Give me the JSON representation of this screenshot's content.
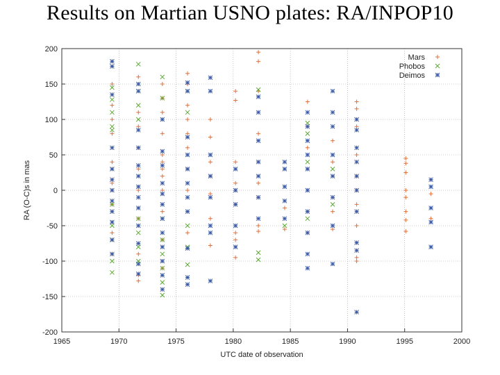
{
  "title": "Results on Martian USNO plates: RA/INPOP10",
  "chart_data": {
    "type": "scatter",
    "xlabel": "UTC date of observation",
    "ylabel": "RA (O-C)s in mas",
    "xlim": [
      1965,
      2000
    ],
    "ylim": [
      -200,
      200
    ],
    "xticks": [
      1965,
      1970,
      1975,
      1980,
      1985,
      1990,
      1995,
      2000
    ],
    "yticks": [
      -200,
      -150,
      -100,
      -50,
      0,
      50,
      100,
      150,
      200
    ],
    "grid": true,
    "legend_position": "top-right",
    "series": [
      {
        "name": "Mars",
        "marker": "+",
        "color": "#e0703a",
        "points": [
          [
            1969.4,
            150
          ],
          [
            1969.4,
            120
          ],
          [
            1969.4,
            100
          ],
          [
            1969.4,
            80
          ],
          [
            1969.4,
            40
          ],
          [
            1969.4,
            10
          ],
          [
            1969.4,
            -20
          ],
          [
            1969.4,
            -60
          ],
          [
            1969.4,
            -90
          ],
          [
            1971.7,
            160
          ],
          [
            1971.7,
            110
          ],
          [
            1971.7,
            90
          ],
          [
            1971.7,
            60
          ],
          [
            1971.7,
            30
          ],
          [
            1971.7,
            0
          ],
          [
            1971.7,
            -40
          ],
          [
            1971.7,
            -90
          ],
          [
            1971.7,
            -120
          ],
          [
            1971.7,
            -128
          ],
          [
            1973.8,
            150
          ],
          [
            1973.8,
            130
          ],
          [
            1973.8,
            110
          ],
          [
            1973.8,
            80
          ],
          [
            1973.8,
            50
          ],
          [
            1973.8,
            40
          ],
          [
            1973.8,
            30
          ],
          [
            1973.8,
            20
          ],
          [
            1973.8,
            0
          ],
          [
            1973.8,
            -30
          ],
          [
            1973.8,
            -70
          ],
          [
            1973.8,
            -110
          ],
          [
            1976.0,
            165
          ],
          [
            1976.0,
            150
          ],
          [
            1976.0,
            120
          ],
          [
            1976.0,
            100
          ],
          [
            1976.0,
            80
          ],
          [
            1976.0,
            60
          ],
          [
            1976.0,
            30
          ],
          [
            1976.0,
            0
          ],
          [
            1976.0,
            -30
          ],
          [
            1976.0,
            -60
          ],
          [
            1978.0,
            100
          ],
          [
            1978.0,
            75
          ],
          [
            1978.0,
            40
          ],
          [
            1978.0,
            20
          ],
          [
            1978.0,
            -5
          ],
          [
            1978.0,
            -40
          ],
          [
            1978.0,
            -78
          ],
          [
            1980.2,
            140
          ],
          [
            1980.2,
            127
          ],
          [
            1980.2,
            40
          ],
          [
            1980.2,
            10
          ],
          [
            1980.2,
            0
          ],
          [
            1980.2,
            -20
          ],
          [
            1980.2,
            -60
          ],
          [
            1980.2,
            -70
          ],
          [
            1980.2,
            -95
          ],
          [
            1982.2,
            195
          ],
          [
            1982.2,
            182
          ],
          [
            1982.2,
            140
          ],
          [
            1982.2,
            80
          ],
          [
            1982.2,
            40
          ],
          [
            1982.2,
            10
          ],
          [
            1982.2,
            -10
          ],
          [
            1982.2,
            -50
          ],
          [
            1982.2,
            -58
          ],
          [
            1984.5,
            -25
          ],
          [
            1984.5,
            -55
          ],
          [
            1986.5,
            125
          ],
          [
            1986.5,
            90
          ],
          [
            1986.5,
            60
          ],
          [
            1986.5,
            30
          ],
          [
            1986.5,
            0
          ],
          [
            1986.5,
            -30
          ],
          [
            1986.5,
            -60
          ],
          [
            1988.7,
            70
          ],
          [
            1988.7,
            40
          ],
          [
            1988.7,
            20
          ],
          [
            1988.7,
            -10
          ],
          [
            1988.7,
            -30
          ],
          [
            1988.7,
            -55
          ],
          [
            1990.8,
            125
          ],
          [
            1990.8,
            115
          ],
          [
            1990.8,
            90
          ],
          [
            1990.8,
            50
          ],
          [
            1990.8,
            20
          ],
          [
            1990.8,
            0
          ],
          [
            1990.8,
            -20
          ],
          [
            1990.8,
            -50
          ],
          [
            1990.8,
            -95
          ],
          [
            1990.8,
            -100
          ],
          [
            1995.1,
            45
          ],
          [
            1995.1,
            38
          ],
          [
            1995.1,
            25
          ],
          [
            1995.1,
            0
          ],
          [
            1995.1,
            -10
          ],
          [
            1995.1,
            -30
          ],
          [
            1995.1,
            -42
          ],
          [
            1995.1,
            -58
          ],
          [
            1997.3,
            15
          ],
          [
            1997.3,
            -5
          ],
          [
            1997.3,
            -40
          ]
        ]
      },
      {
        "name": "Phobos",
        "marker": "x",
        "color": "#5aa832",
        "points": [
          [
            1969.4,
            145
          ],
          [
            1969.4,
            128
          ],
          [
            1969.4,
            110
          ],
          [
            1969.4,
            90
          ],
          [
            1969.4,
            85
          ],
          [
            1969.4,
            -20
          ],
          [
            1969.4,
            -50
          ],
          [
            1969.4,
            -70
          ],
          [
            1969.4,
            -100
          ],
          [
            1969.4,
            -116
          ],
          [
            1971.7,
            178
          ],
          [
            1971.7,
            140
          ],
          [
            1971.7,
            120
          ],
          [
            1971.7,
            100
          ],
          [
            1971.7,
            -40
          ],
          [
            1971.7,
            -60
          ],
          [
            1971.7,
            -80
          ],
          [
            1971.7,
            -100
          ],
          [
            1973.8,
            160
          ],
          [
            1973.8,
            130
          ],
          [
            1973.8,
            -40
          ],
          [
            1973.8,
            -70
          ],
          [
            1973.8,
            -90
          ],
          [
            1973.8,
            -110
          ],
          [
            1973.8,
            -130
          ],
          [
            1973.8,
            -148
          ],
          [
            1976.0,
            140
          ],
          [
            1976.0,
            110
          ],
          [
            1976.0,
            -50
          ],
          [
            1976.0,
            -80
          ],
          [
            1976.0,
            -105
          ],
          [
            1982.2,
            142
          ],
          [
            1982.2,
            -88
          ],
          [
            1982.2,
            -98
          ],
          [
            1984.5,
            -50
          ],
          [
            1986.5,
            95
          ],
          [
            1986.5,
            80
          ],
          [
            1986.5,
            40
          ],
          [
            1986.5,
            -40
          ],
          [
            1988.7,
            30
          ],
          [
            1988.7,
            -20
          ]
        ]
      },
      {
        "name": "Deimos",
        "marker": "asterisk",
        "color": "#3a5aa8",
        "points": [
          [
            1969.4,
            182
          ],
          [
            1969.4,
            175
          ],
          [
            1969.4,
            135
          ],
          [
            1969.4,
            60
          ],
          [
            1969.4,
            30
          ],
          [
            1969.4,
            15
          ],
          [
            1969.4,
            0
          ],
          [
            1969.4,
            -15
          ],
          [
            1969.4,
            -30
          ],
          [
            1969.4,
            -45
          ],
          [
            1969.4,
            -70
          ],
          [
            1969.4,
            -90
          ],
          [
            1971.7,
            150
          ],
          [
            1971.7,
            140
          ],
          [
            1971.7,
            85
          ],
          [
            1971.7,
            60
          ],
          [
            1971.7,
            35
          ],
          [
            1971.7,
            20
          ],
          [
            1971.7,
            5
          ],
          [
            1971.7,
            -10
          ],
          [
            1971.7,
            -25
          ],
          [
            1971.7,
            -50
          ],
          [
            1971.7,
            -75
          ],
          [
            1971.7,
            -104
          ],
          [
            1971.7,
            -118
          ],
          [
            1973.8,
            100
          ],
          [
            1973.8,
            55
          ],
          [
            1973.8,
            35
          ],
          [
            1973.8,
            10
          ],
          [
            1973.8,
            -5
          ],
          [
            1973.8,
            -20
          ],
          [
            1973.8,
            -40
          ],
          [
            1973.8,
            -60
          ],
          [
            1973.8,
            -80
          ],
          [
            1973.8,
            -100
          ],
          [
            1973.8,
            -120
          ],
          [
            1973.8,
            -140
          ],
          [
            1976.0,
            152
          ],
          [
            1976.0,
            140
          ],
          [
            1976.0,
            75
          ],
          [
            1976.0,
            50
          ],
          [
            1976.0,
            30
          ],
          [
            1976.0,
            10
          ],
          [
            1976.0,
            -10
          ],
          [
            1976.0,
            -30
          ],
          [
            1976.0,
            -82
          ],
          [
            1976.0,
            -123
          ],
          [
            1976.0,
            -133
          ],
          [
            1978.0,
            159
          ],
          [
            1978.0,
            140
          ],
          [
            1978.0,
            50
          ],
          [
            1978.0,
            20
          ],
          [
            1978.0,
            -10
          ],
          [
            1978.0,
            -50
          ],
          [
            1978.0,
            -60
          ],
          [
            1978.0,
            -128
          ],
          [
            1980.2,
            30
          ],
          [
            1980.2,
            0
          ],
          [
            1980.2,
            -20
          ],
          [
            1980.2,
            -50
          ],
          [
            1980.2,
            -80
          ],
          [
            1982.2,
            132
          ],
          [
            1982.2,
            110
          ],
          [
            1982.2,
            70
          ],
          [
            1982.2,
            40
          ],
          [
            1982.2,
            20
          ],
          [
            1982.2,
            -10
          ],
          [
            1982.2,
            -40
          ],
          [
            1984.5,
            40
          ],
          [
            1984.5,
            30
          ],
          [
            1984.5,
            5
          ],
          [
            1984.5,
            -15
          ],
          [
            1984.5,
            -40
          ],
          [
            1986.5,
            110
          ],
          [
            1986.5,
            90
          ],
          [
            1986.5,
            70
          ],
          [
            1986.5,
            50
          ],
          [
            1986.5,
            30
          ],
          [
            1986.5,
            0
          ],
          [
            1986.5,
            -30
          ],
          [
            1986.5,
            -60
          ],
          [
            1986.5,
            -90
          ],
          [
            1986.5,
            -110
          ],
          [
            1988.7,
            140
          ],
          [
            1988.7,
            110
          ],
          [
            1988.7,
            90
          ],
          [
            1988.7,
            50
          ],
          [
            1988.7,
            20
          ],
          [
            1988.7,
            -10
          ],
          [
            1988.7,
            -50
          ],
          [
            1988.7,
            -104
          ],
          [
            1990.8,
            100
          ],
          [
            1990.8,
            85
          ],
          [
            1990.8,
            60
          ],
          [
            1990.8,
            40
          ],
          [
            1990.8,
            20
          ],
          [
            1990.8,
            0
          ],
          [
            1990.8,
            -30
          ],
          [
            1990.8,
            -74
          ],
          [
            1990.8,
            -85
          ],
          [
            1990.8,
            -172
          ],
          [
            1997.3,
            15
          ],
          [
            1997.3,
            5
          ],
          [
            1997.3,
            -25
          ],
          [
            1997.3,
            -45
          ],
          [
            1997.3,
            -80
          ]
        ]
      }
    ]
  }
}
